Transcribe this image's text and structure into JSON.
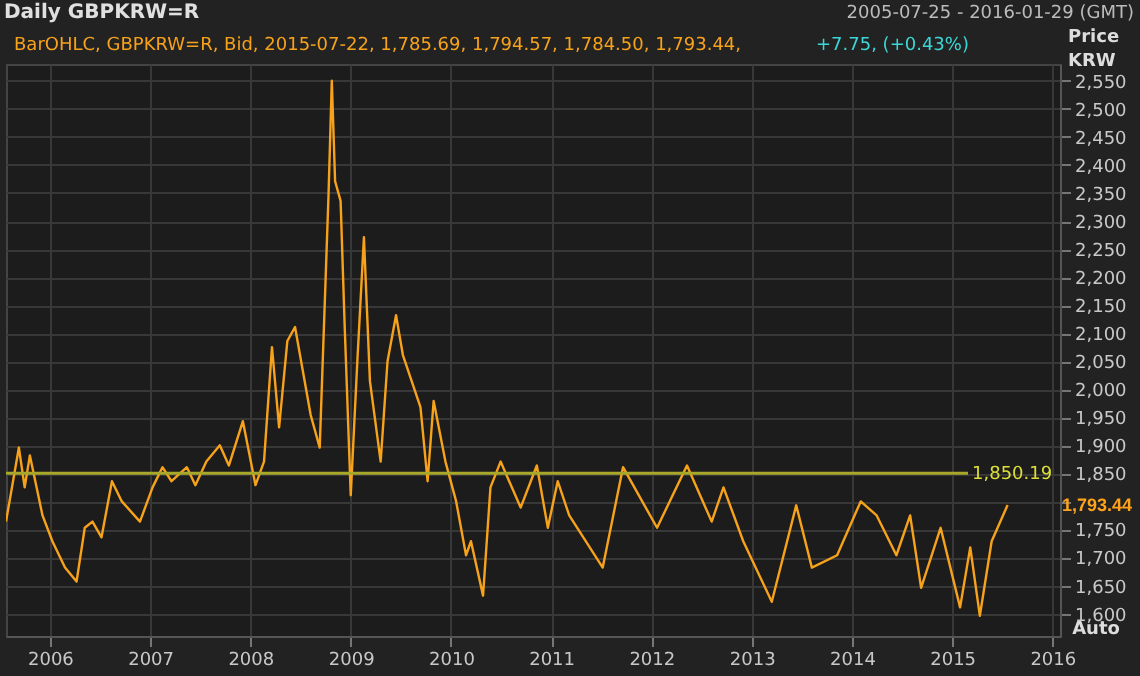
{
  "chart_data": {
    "type": "line",
    "title": "Daily GBPKRW=R",
    "subtitle": "2005-07-25 - 2016-01-29 (GMT)",
    "ylabel": "Price KRW",
    "annotations": [
      "BarOHLC, GBPKRW=R, Bid, 2015-07-22, 1,785.69, 1,794.57, 1,784.50, 1,793.44,",
      "+7.75, (+0.43%)",
      "Auto",
      "1,793.44"
    ],
    "x": [
      "2005-07-25",
      "2005-09-10",
      "2005-10-01",
      "2005-10-20",
      "2005-12-05",
      "2006-01-10",
      "2006-02-25",
      "2006-04-08",
      "2006-05-08",
      "2006-06-05",
      "2006-07-08",
      "2006-08-15",
      "2006-09-20",
      "2006-11-25",
      "2007-01-10",
      "2007-02-15",
      "2007-03-20",
      "2007-05-15",
      "2007-06-15",
      "2007-07-25",
      "2007-09-12",
      "2007-10-15",
      "2007-12-05",
      "2008-01-20",
      "2008-02-20",
      "2008-03-20",
      "2008-04-15",
      "2008-05-15",
      "2008-06-12",
      "2008-08-08",
      "2008-09-10",
      "2008-10-12",
      "2008-10-24",
      "2008-11-05",
      "2008-11-25",
      "2008-12-10",
      "2009-01-01",
      "2009-01-25",
      "2009-02-18",
      "2009-03-12",
      "2009-04-20",
      "2009-05-15",
      "2009-06-15",
      "2009-07-10",
      "2009-09-12",
      "2009-10-08",
      "2009-10-30",
      "2009-12-12",
      "2010-01-20",
      "2010-02-25",
      "2010-03-15",
      "2010-04-28",
      "2010-05-25",
      "2010-07-01",
      "2010-09-12",
      "2010-11-10",
      "2010-12-20",
      "2011-01-25",
      "2011-03-08",
      "2011-07-08",
      "2011-09-20",
      "2012-01-22",
      "2012-05-10",
      "2012-08-08",
      "2012-09-20",
      "2012-12-01",
      "2013-03-15",
      "2013-06-12",
      "2013-08-08",
      "2013-11-08",
      "2014-02-02",
      "2014-04-01",
      "2014-06-12",
      "2014-08-01",
      "2014-09-10",
      "2014-11-20",
      "2015-01-30",
      "2015-03-08",
      "2015-04-12",
      "2015-05-25",
      "2015-07-22"
    ],
    "values": [
      1764,
      1896,
      1825,
      1882,
      1775,
      1729,
      1682,
      1657,
      1753,
      1764,
      1736,
      1836,
      1800,
      1764,
      1825,
      1861,
      1836,
      1861,
      1829,
      1871,
      1900,
      1864,
      1943,
      1829,
      1871,
      2075,
      1932,
      2086,
      2111,
      1954,
      1896,
      2346,
      2550,
      2371,
      2336,
      2111,
      1811,
      2050,
      2271,
      2014,
      1871,
      2050,
      2132,
      2061,
      1968,
      1836,
      1979,
      1871,
      1800,
      1704,
      1729,
      1632,
      1825,
      1871,
      1789,
      1864,
      1753,
      1836,
      1775,
      1682,
      1861,
      1753,
      1864,
      1764,
      1825,
      1729,
      1621,
      1793,
      1682,
      1704,
      1800,
      1775,
      1704,
      1775,
      1646,
      1753,
      1611,
      1718,
      1596,
      1729,
      1793.44
    ],
    "color": "#f7a21b",
    "line_style": "solid",
    "marker": "none",
    "xlim": [
      "2005-07-25",
      "2016-01-29"
    ],
    "xticks": [
      "2006",
      "2007",
      "2008",
      "2009",
      "2010",
      "2011",
      "2012",
      "2013",
      "2014",
      "2015",
      "2016"
    ],
    "ylim": [
      1560,
      2580
    ],
    "yticks": [
      {
        "value": 1600,
        "label": "1,600"
      },
      {
        "value": 1650,
        "label": "1,650"
      },
      {
        "value": 1700,
        "label": "1,700"
      },
      {
        "value": 1750,
        "label": "1,750"
      },
      {
        "value": 1800,
        "label": null
      },
      {
        "value": 1850,
        "label": "1,850"
      },
      {
        "value": 1900,
        "label": "1,900"
      },
      {
        "value": 1950,
        "label": "1,950"
      },
      {
        "value": 2000,
        "label": "2,000"
      },
      {
        "value": 2050,
        "label": "2,050"
      },
      {
        "value": 2100,
        "label": "2,100"
      },
      {
        "value": 2150,
        "label": "2,150"
      },
      {
        "value": 2200,
        "label": "2,200"
      },
      {
        "value": 2250,
        "label": "2,250"
      },
      {
        "value": 2300,
        "label": "2,300"
      },
      {
        "value": 2350,
        "label": "2,350"
      },
      {
        "value": 2400,
        "label": "2,400"
      },
      {
        "value": 2450,
        "label": "2,450"
      },
      {
        "value": 2500,
        "label": "2,500"
      },
      {
        "value": 2550,
        "label": "2,550"
      }
    ],
    "ref_lines": [
      {
        "axis": "y",
        "value": 1850.19,
        "label": "1,850.19",
        "color": "#a8a82a"
      }
    ],
    "grid": true
  }
}
